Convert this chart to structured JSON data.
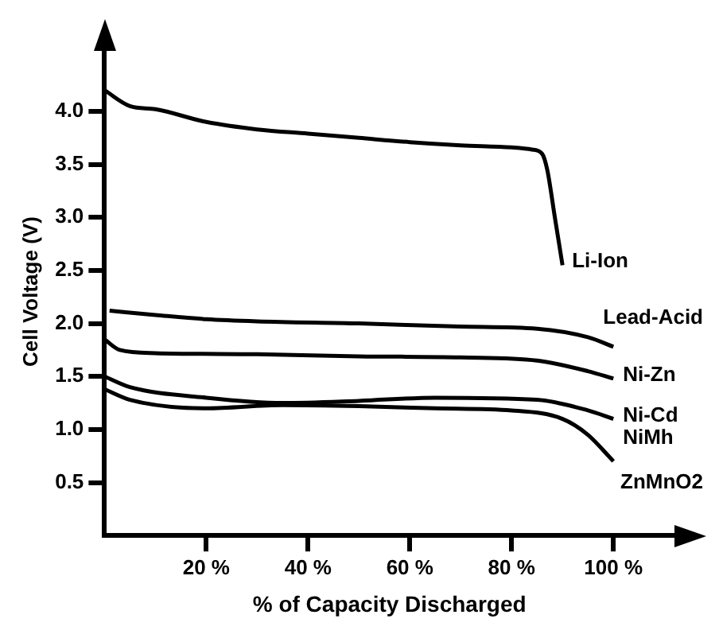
{
  "chart_data": {
    "type": "line",
    "xlabel": "% of Capacity Discharged",
    "ylabel": "Cell Voltage (V)",
    "xlim": [
      0,
      112
    ],
    "ylim": [
      0,
      4.6
    ],
    "xticks": [
      {
        "value": 20,
        "label": "20 %"
      },
      {
        "value": 40,
        "label": "40 %"
      },
      {
        "value": 60,
        "label": "60 %"
      },
      {
        "value": 80,
        "label": "80 %"
      },
      {
        "value": 100,
        "label": "100 %"
      }
    ],
    "yticks": [
      {
        "value": 0.5,
        "label": "0.5"
      },
      {
        "value": 1,
        "label": "1.0"
      },
      {
        "value": 1.5,
        "label": "1.5"
      },
      {
        "value": 2,
        "label": "2.0"
      },
      {
        "value": 2.5,
        "label": "2.5"
      },
      {
        "value": 3,
        "label": "3.0"
      },
      {
        "value": 3.5,
        "label": "3.5"
      },
      {
        "value": 4,
        "label": "4.0"
      }
    ],
    "grid": false,
    "legend": false,
    "marker": "none",
    "line_style": "solid",
    "series": [
      {
        "name": "Li-Ion",
        "color": "#000000",
        "x": [
          0,
          5,
          10,
          20,
          30,
          40,
          50,
          60,
          70,
          80,
          84,
          86,
          87,
          88.5,
          90
        ],
        "values": [
          4.2,
          4.05,
          4.02,
          3.9,
          3.83,
          3.79,
          3.75,
          3.71,
          3.68,
          3.66,
          3.64,
          3.6,
          3.45,
          3.0,
          2.55
        ]
      },
      {
        "name": "Lead-Acid",
        "color": "#000000",
        "x": [
          1,
          10,
          20,
          30,
          50,
          70,
          85,
          95,
          100
        ],
        "values": [
          2.12,
          2.08,
          2.04,
          2.02,
          2.0,
          1.97,
          1.95,
          1.87,
          1.78
        ]
      },
      {
        "name": "Ni-Zn",
        "color": "#000000",
        "x": [
          0,
          3,
          10,
          30,
          50,
          70,
          85,
          95,
          100
        ],
        "values": [
          1.85,
          1.75,
          1.72,
          1.71,
          1.69,
          1.68,
          1.65,
          1.55,
          1.48
        ]
      },
      {
        "name": "Ni-Cd",
        "color": "#000000",
        "x": [
          0,
          5,
          20,
          35,
          50,
          65,
          85,
          95,
          100
        ],
        "values": [
          1.5,
          1.4,
          1.3,
          1.25,
          1.27,
          1.3,
          1.28,
          1.18,
          1.1
        ]
      },
      {
        "name": "ZnMnO2",
        "color": "#000000",
        "x": [
          0,
          5,
          20,
          35,
          50,
          65,
          80,
          90,
          95,
          100
        ],
        "values": [
          1.38,
          1.28,
          1.2,
          1.23,
          1.22,
          1.2,
          1.18,
          1.1,
          0.95,
          0.7
        ]
      }
    ],
    "annotations": [
      "NiMh"
    ]
  }
}
